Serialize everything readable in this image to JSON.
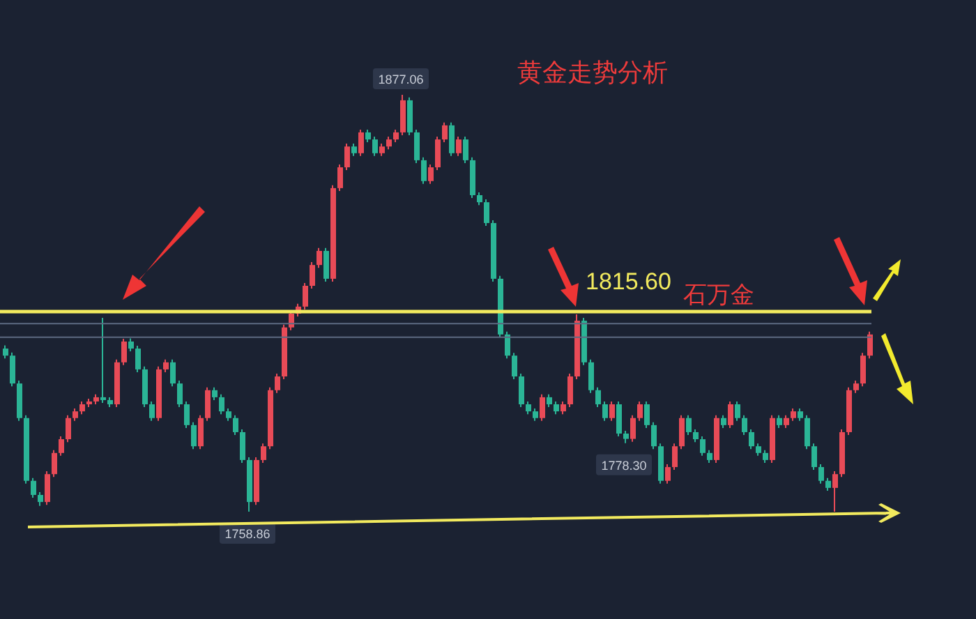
{
  "chart_data": {
    "type": "candlestick",
    "title": "黄金走势分析",
    "categories": [
      null,
      null,
      null,
      null,
      null,
      null,
      null,
      null,
      null,
      null,
      null,
      null,
      null,
      null,
      null,
      null,
      null,
      null,
      null,
      null,
      null,
      null,
      null,
      null,
      null,
      null,
      null,
      null,
      null,
      null,
      null,
      null,
      null,
      null,
      null,
      null,
      null,
      null,
      null,
      null,
      null,
      null,
      null,
      null,
      null,
      null,
      null,
      null,
      null,
      null,
      null,
      null,
      null,
      null,
      null,
      null,
      null,
      null,
      null,
      null,
      null,
      null,
      null,
      null,
      null,
      null,
      null,
      null,
      null,
      null,
      null,
      null,
      null,
      null,
      null,
      null,
      null,
      null,
      null,
      null,
      null,
      null,
      null,
      null,
      null,
      null,
      null,
      null,
      null,
      null,
      null,
      null,
      null,
      null,
      null,
      null,
      null,
      null,
      null,
      null,
      null,
      null,
      null,
      null,
      null,
      null,
      null,
      null,
      null,
      null,
      null,
      null,
      null,
      null,
      null,
      null,
      null,
      null,
      null,
      null,
      null,
      null,
      null,
      null,
      null
    ],
    "ohlc": [
      [
        1805.1,
        1806.0,
        1802.3,
        1803.1
      ],
      [
        1803.1,
        1804.0,
        1794.4,
        1795.2
      ],
      [
        1795.2,
        1796.0,
        1784.6,
        1785.4
      ],
      [
        1785.4,
        1786.2,
        1766.8,
        1767.6
      ],
      [
        1767.6,
        1768.4,
        1762.8,
        1763.6
      ],
      [
        1763.6,
        1764.4,
        1760.5,
        1761.6
      ],
      [
        1761.6,
        1770.3,
        1760.8,
        1769.5
      ],
      [
        1769.5,
        1776.3,
        1768.7,
        1775.5
      ],
      [
        1775.5,
        1780.2,
        1774.7,
        1779.4
      ],
      [
        1779.4,
        1786.2,
        1778.6,
        1785.4
      ],
      [
        1785.4,
        1788.1,
        1784.6,
        1787.3
      ],
      [
        1787.3,
        1790.1,
        1786.5,
        1789.3
      ],
      [
        1789.3,
        1790.9,
        1788.5,
        1790.1
      ],
      [
        1790.1,
        1792.1,
        1789.3,
        1791.3
      ],
      [
        1791.3,
        1813.8,
        1789.7,
        1790.5
      ],
      [
        1790.5,
        1791.3,
        1788.5,
        1789.3
      ],
      [
        1789.3,
        1802.0,
        1788.5,
        1801.2
      ],
      [
        1801.2,
        1807.9,
        1800.4,
        1807.1
      ],
      [
        1807.1,
        1808.0,
        1804.3,
        1805.1
      ],
      [
        1805.1,
        1805.9,
        1798.4,
        1799.2
      ],
      [
        1799.2,
        1800.0,
        1788.5,
        1789.3
      ],
      [
        1789.3,
        1790.1,
        1784.6,
        1785.4
      ],
      [
        1785.4,
        1800.0,
        1784.6,
        1799.2
      ],
      [
        1799.2,
        1802.0,
        1798.4,
        1801.2
      ],
      [
        1801.2,
        1802.0,
        1794.4,
        1795.2
      ],
      [
        1795.2,
        1796.0,
        1788.5,
        1789.3
      ],
      [
        1789.3,
        1790.1,
        1782.6,
        1783.4
      ],
      [
        1783.4,
        1784.2,
        1776.6,
        1777.4
      ],
      [
        1777.4,
        1786.2,
        1776.6,
        1785.4
      ],
      [
        1785.4,
        1794.1,
        1784.6,
        1793.3
      ],
      [
        1793.3,
        1794.1,
        1790.5,
        1791.3
      ],
      [
        1791.3,
        1792.1,
        1786.5,
        1787.3
      ],
      [
        1787.3,
        1788.1,
        1784.6,
        1785.4
      ],
      [
        1785.4,
        1786.2,
        1780.6,
        1781.4
      ],
      [
        1781.4,
        1782.2,
        1772.7,
        1773.5
      ],
      [
        1773.5,
        1774.3,
        1758.86,
        1761.6
      ],
      [
        1761.6,
        1774.3,
        1760.8,
        1773.5
      ],
      [
        1773.5,
        1778.2,
        1772.7,
        1777.4
      ],
      [
        1777.4,
        1794.1,
        1776.6,
        1793.3
      ],
      [
        1793.3,
        1798.0,
        1792.5,
        1797.2
      ],
      [
        1797.2,
        1811.9,
        1796.4,
        1811.1
      ],
      [
        1811.1,
        1815.8,
        1810.3,
        1815.0
      ],
      [
        1815.0,
        1817.8,
        1814.2,
        1817.0
      ],
      [
        1817.0,
        1823.7,
        1816.2,
        1822.9
      ],
      [
        1822.9,
        1829.6,
        1822.1,
        1828.8
      ],
      [
        1828.8,
        1833.6,
        1828.0,
        1832.8
      ],
      [
        1832.8,
        1833.6,
        1824.1,
        1824.9
      ],
      [
        1824.9,
        1851.4,
        1824.1,
        1850.6
      ],
      [
        1850.6,
        1857.3,
        1849.8,
        1856.5
      ],
      [
        1856.5,
        1863.2,
        1855.7,
        1862.4
      ],
      [
        1862.4,
        1863.2,
        1859.7,
        1860.5
      ],
      [
        1860.5,
        1867.2,
        1859.7,
        1866.4
      ],
      [
        1866.4,
        1867.2,
        1863.6,
        1864.4
      ],
      [
        1864.4,
        1865.2,
        1859.7,
        1860.5
      ],
      [
        1860.5,
        1863.2,
        1859.7,
        1862.4
      ],
      [
        1862.4,
        1865.2,
        1861.6,
        1864.4
      ],
      [
        1864.4,
        1867.2,
        1863.6,
        1866.4
      ],
      [
        1866.4,
        1877.06,
        1865.6,
        1875.5
      ],
      [
        1875.5,
        1876.3,
        1865.6,
        1866.4
      ],
      [
        1866.4,
        1867.2,
        1857.7,
        1858.5
      ],
      [
        1858.5,
        1859.3,
        1851.8,
        1852.6
      ],
      [
        1852.6,
        1857.3,
        1851.8,
        1856.5
      ],
      [
        1856.5,
        1865.2,
        1855.7,
        1864.4
      ],
      [
        1864.4,
        1869.2,
        1863.6,
        1868.4
      ],
      [
        1868.4,
        1869.2,
        1859.7,
        1860.5
      ],
      [
        1860.5,
        1865.2,
        1859.7,
        1864.4
      ],
      [
        1864.4,
        1865.2,
        1857.7,
        1858.5
      ],
      [
        1858.5,
        1859.3,
        1847.8,
        1848.6
      ],
      [
        1848.6,
        1849.4,
        1845.8,
        1846.6
      ],
      [
        1846.6,
        1847.4,
        1839.9,
        1840.7
      ],
      [
        1840.7,
        1841.5,
        1824.1,
        1824.9
      ],
      [
        1824.9,
        1825.7,
        1808.3,
        1809.1
      ],
      [
        1809.1,
        1809.9,
        1802.3,
        1803.1
      ],
      [
        1803.1,
        1803.9,
        1796.4,
        1797.2
      ],
      [
        1797.2,
        1798.0,
        1788.5,
        1789.3
      ],
      [
        1789.3,
        1790.1,
        1786.5,
        1787.3
      ],
      [
        1787.3,
        1788.1,
        1784.6,
        1785.4
      ],
      [
        1785.4,
        1792.1,
        1784.6,
        1791.3
      ],
      [
        1791.3,
        1792.1,
        1788.5,
        1789.3
      ],
      [
        1789.3,
        1790.1,
        1786.5,
        1787.3
      ],
      [
        1787.3,
        1790.1,
        1786.5,
        1789.3
      ],
      [
        1789.3,
        1798.0,
        1788.5,
        1797.2
      ],
      [
        1797.2,
        1814.8,
        1796.4,
        1813.0
      ],
      [
        1813.0,
        1813.8,
        1800.4,
        1801.2
      ],
      [
        1801.2,
        1802.0,
        1792.5,
        1793.3
      ],
      [
        1793.3,
        1794.1,
        1788.5,
        1789.3
      ],
      [
        1789.3,
        1790.1,
        1784.6,
        1785.4
      ],
      [
        1785.4,
        1790.1,
        1784.6,
        1789.3
      ],
      [
        1789.3,
        1790.1,
        1780.2,
        1781.0
      ],
      [
        1781.0,
        1781.8,
        1778.3,
        1779.5
      ],
      [
        1779.5,
        1786.2,
        1778.7,
        1785.4
      ],
      [
        1785.4,
        1790.1,
        1784.6,
        1789.3
      ],
      [
        1789.3,
        1790.1,
        1782.6,
        1783.4
      ],
      [
        1783.4,
        1784.2,
        1776.6,
        1777.4
      ],
      [
        1777.4,
        1778.2,
        1766.8,
        1767.6
      ],
      [
        1767.6,
        1772.3,
        1766.8,
        1771.5
      ],
      [
        1771.5,
        1778.2,
        1770.7,
        1777.4
      ],
      [
        1777.4,
        1786.2,
        1776.6,
        1785.4
      ],
      [
        1785.4,
        1786.2,
        1780.6,
        1781.4
      ],
      [
        1781.4,
        1782.2,
        1778.6,
        1779.4
      ],
      [
        1779.4,
        1780.2,
        1774.7,
        1775.5
      ],
      [
        1775.5,
        1776.3,
        1772.7,
        1773.5
      ],
      [
        1773.5,
        1786.2,
        1772.7,
        1785.4
      ],
      [
        1785.4,
        1786.2,
        1782.6,
        1783.4
      ],
      [
        1783.4,
        1790.1,
        1782.6,
        1789.3
      ],
      [
        1789.3,
        1790.1,
        1784.6,
        1785.4
      ],
      [
        1785.4,
        1786.2,
        1780.6,
        1781.4
      ],
      [
        1781.4,
        1782.2,
        1776.6,
        1777.4
      ],
      [
        1777.4,
        1778.2,
        1774.7,
        1775.5
      ],
      [
        1775.5,
        1776.3,
        1772.7,
        1773.5
      ],
      [
        1773.5,
        1786.2,
        1772.7,
        1785.4
      ],
      [
        1785.4,
        1786.2,
        1782.6,
        1783.4
      ],
      [
        1783.4,
        1786.2,
        1782.6,
        1785.4
      ],
      [
        1785.4,
        1788.1,
        1784.6,
        1787.3
      ],
      [
        1787.3,
        1788.1,
        1784.6,
        1785.4
      ],
      [
        1785.4,
        1786.2,
        1776.6,
        1777.4
      ],
      [
        1777.4,
        1778.2,
        1770.7,
        1771.5
      ],
      [
        1771.5,
        1772.3,
        1766.8,
        1767.6
      ],
      [
        1767.6,
        1768.4,
        1764.8,
        1765.6
      ],
      [
        1765.6,
        1770.3,
        1758.86,
        1769.5
      ],
      [
        1769.5,
        1782.2,
        1768.7,
        1781.4
      ],
      [
        1781.4,
        1794.1,
        1780.6,
        1793.3
      ],
      [
        1793.3,
        1796.0,
        1792.5,
        1795.2
      ],
      [
        1795.2,
        1803.9,
        1794.4,
        1803.1
      ],
      [
        1803.1,
        1809.9,
        1802.3,
        1809.1
      ]
    ],
    "ref_lines": [
      {
        "axis": "y",
        "value": 1815.6,
        "label": "1815.60",
        "color": "#f2ea5e"
      },
      {
        "axis": "y",
        "value": 1812.2,
        "color": "#5d6a82"
      },
      {
        "axis": "y",
        "value": 1808.3,
        "color": "#5d6a82"
      }
    ],
    "annotations": [
      {
        "text": "1877.06",
        "y": 1877.06
      },
      {
        "text": "1758.86",
        "y": 1758.86
      },
      {
        "text": "1778.30",
        "y": 1778.3
      },
      "石万金"
    ]
  }
}
